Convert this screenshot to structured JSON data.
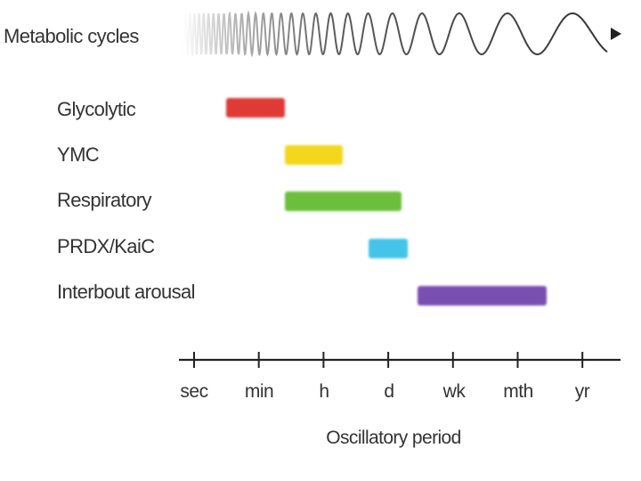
{
  "title": "Metabolic cycles",
  "rows": [
    {
      "label": "Glycolytic",
      "start": "sec+",
      "color": "#e03a36"
    },
    {
      "label": "YMC",
      "color": "#f3d71c"
    },
    {
      "label": "Respiratory",
      "color": "#6cbf3c"
    },
    {
      "label": "PRDX/KaiC",
      "color": "#45c4ea"
    },
    {
      "label": "Interbout arousal",
      "color": "#7a4fb2"
    }
  ],
  "axis": {
    "ticks": [
      "sec",
      "min",
      "h",
      "d",
      "wk",
      "mth",
      "yr"
    ],
    "title": "Oscillatory period"
  },
  "chart_data": {
    "type": "range",
    "scale": [
      "sec",
      "min",
      "h",
      "d",
      "wk",
      "mth",
      "yr"
    ],
    "ranges": [
      {
        "name": "Glycolytic",
        "from": 0.5,
        "to": 1.4
      },
      {
        "name": "YMC",
        "from": 1.4,
        "to": 2.3
      },
      {
        "name": "Respiratory",
        "from": 1.4,
        "to": 3.2
      },
      {
        "name": "PRDX/KaiC",
        "from": 2.7,
        "to": 3.3
      },
      {
        "name": "Interbout arousal",
        "from": 3.45,
        "to": 5.45
      }
    ]
  }
}
